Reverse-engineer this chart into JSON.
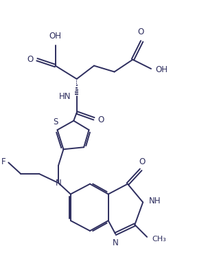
{
  "bg_color": "#ffffff",
  "line_color": "#2d2d5e",
  "line_width": 1.4,
  "font_size": 8.5,
  "figsize": [
    3.0,
    3.9
  ],
  "dpi": 100,
  "xlim": [
    0,
    10
  ],
  "ylim": [
    0,
    13
  ]
}
